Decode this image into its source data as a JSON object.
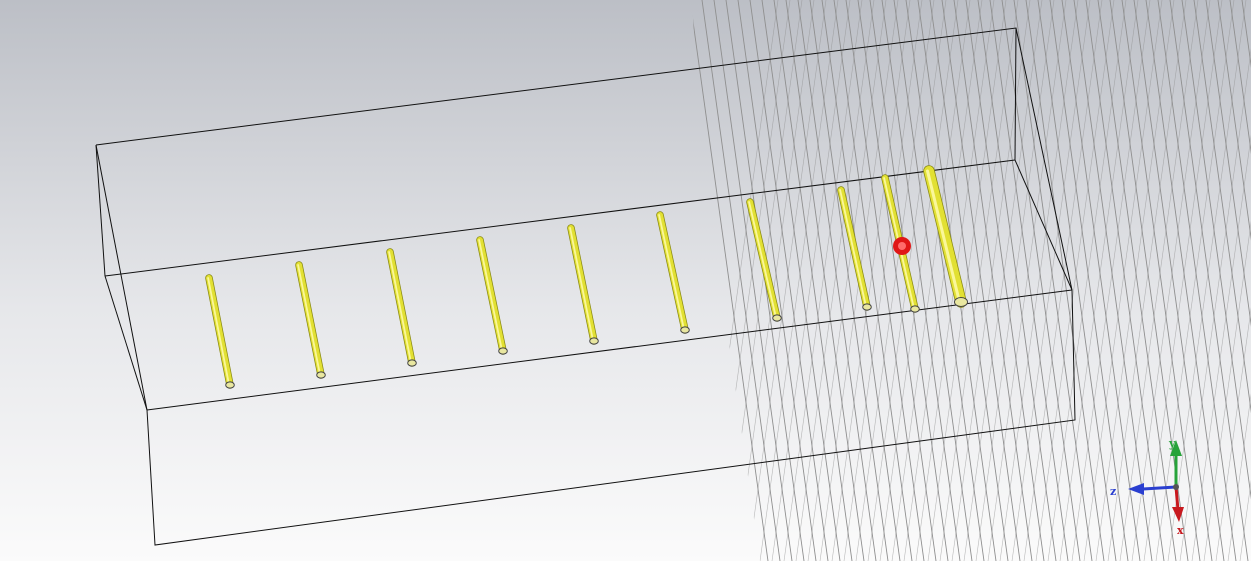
{
  "viewport": {
    "name": "3d-model-viewport",
    "background_top": "#bcbfc6",
    "background_bottom": "#fbfbfb"
  },
  "model": {
    "element_color": "#e2e033",
    "element_edge_color": "#8a8a12",
    "feed_port_color": "#e01616",
    "box_edge_color": "#111111",
    "mesh_line_color": "#8f8f8f",
    "element_count": 10,
    "driven_element_index": 8,
    "reflector_index": 9
  },
  "axes": {
    "x": {
      "label": "x",
      "color": "#c8191f"
    },
    "y": {
      "label": "y",
      "color": "#27a33a"
    },
    "z": {
      "label": "z",
      "color": "#2a3fd0"
    }
  }
}
